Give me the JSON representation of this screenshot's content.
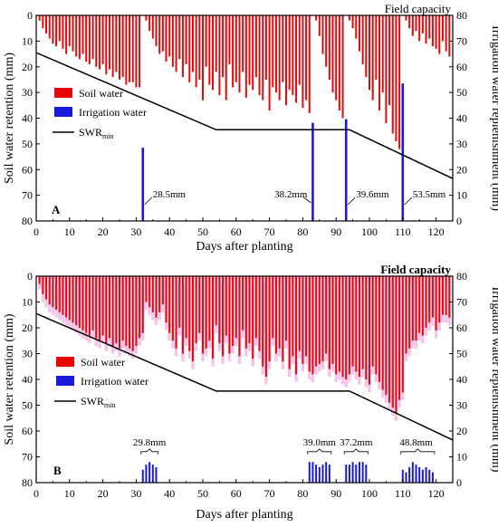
{
  "chart_data": [
    {
      "type": "bar",
      "panel_label": "A",
      "title": "Field capacity",
      "xlabel": "Days after planting",
      "ylabel": "Soil water retention (mm)",
      "y2label": "Irrigation water replenishment (mm)",
      "xlim": [
        0,
        125
      ],
      "ylim": [
        80,
        0
      ],
      "y2lim": [
        0,
        80
      ],
      "xticks": [
        0,
        10,
        20,
        30,
        40,
        50,
        60,
        70,
        80,
        90,
        100,
        110,
        120
      ],
      "yticks": [
        0,
        10,
        20,
        30,
        40,
        50,
        60,
        70,
        80
      ],
      "y2ticks": [
        0,
        10,
        20,
        30,
        40,
        50,
        60,
        70,
        80
      ],
      "legend": {
        "placement": "left",
        "entries": [
          "Soil water",
          "Irrigation water",
          "SWR_min"
        ]
      },
      "legend_labels": {
        "soil": "Soil water",
        "irr": "Irrigation water",
        "swr_main": "SWR",
        "swr_sub": "min"
      },
      "colors": {
        "soil": "#e8080a",
        "irrigation": "#1a1adb",
        "swr": "#000000"
      },
      "series": [
        {
          "name": "Soil water",
          "x": [
            1,
            2,
            3,
            4,
            5,
            6,
            7,
            8,
            9,
            10,
            11,
            12,
            13,
            14,
            15,
            16,
            17,
            18,
            19,
            20,
            21,
            22,
            23,
            24,
            25,
            26,
            27,
            28,
            29,
            30,
            31,
            33,
            34,
            35,
            36,
            37,
            38,
            39,
            40,
            41,
            42,
            43,
            44,
            45,
            46,
            47,
            48,
            49,
            50,
            51,
            52,
            53,
            54,
            55,
            56,
            57,
            58,
            59,
            60,
            61,
            62,
            63,
            64,
            65,
            66,
            67,
            68,
            69,
            70,
            71,
            72,
            73,
            74,
            75,
            76,
            77,
            78,
            79,
            80,
            81,
            82,
            84,
            85,
            86,
            87,
            88,
            89,
            90,
            91,
            92,
            94,
            95,
            96,
            97,
            98,
            99,
            100,
            101,
            102,
            103,
            104,
            105,
            106,
            107,
            108,
            109,
            111,
            112,
            113,
            114,
            115,
            116,
            117,
            118,
            119,
            120,
            121,
            122,
            123,
            124
          ],
          "values": [
            2,
            5,
            7,
            9,
            11,
            12,
            10,
            13,
            15,
            12,
            14,
            16,
            17,
            15,
            18,
            19,
            17,
            20,
            21,
            19,
            23,
            21,
            24,
            22,
            25,
            24,
            27,
            26,
            26,
            28,
            28,
            2,
            6,
            9,
            12,
            15,
            14,
            18,
            16,
            20,
            22,
            17,
            24,
            19,
            26,
            22,
            28,
            25,
            33,
            20,
            27,
            29,
            22,
            31,
            24,
            33,
            19,
            28,
            26,
            30,
            22,
            32,
            27,
            29,
            24,
            31,
            33,
            25,
            37,
            28,
            30,
            33,
            26,
            35,
            29,
            31,
            34,
            27,
            36,
            33,
            38,
            2,
            8,
            15,
            20,
            25,
            30,
            33,
            37,
            40,
            2,
            5,
            9,
            14,
            19,
            24,
            29,
            33,
            25,
            37,
            30,
            42,
            35,
            46,
            49,
            52,
            2,
            5,
            8,
            6,
            10,
            7,
            11,
            9,
            12,
            13,
            15,
            10,
            14,
            16
          ]
        },
        {
          "name": "Irrigation water",
          "x": [
            32,
            83,
            93,
            110
          ],
          "values": [
            28.5,
            38.2,
            39.6,
            53.5
          ],
          "labels": [
            "28.5mm",
            "38.2mm",
            "39.6mm",
            "53.5mm"
          ]
        },
        {
          "name": "SWR_min",
          "type": "line",
          "x": [
            0,
            54,
            94,
            125
          ],
          "values": [
            14.5,
            44.5,
            44.5,
            63.5
          ]
        }
      ]
    },
    {
      "type": "bar",
      "panel_label": "B",
      "title": "Field capacity",
      "xlabel": "Days after planting",
      "ylabel": "Soil water retention (mm)",
      "y2label": "Irrigation water replenishment (mm)",
      "xlim": [
        0,
        125
      ],
      "ylim": [
        80,
        0
      ],
      "y2lim": [
        0,
        80
      ],
      "xticks": [
        0,
        10,
        20,
        30,
        40,
        50,
        60,
        70,
        80,
        90,
        100,
        110,
        120
      ],
      "yticks": [
        0,
        10,
        20,
        30,
        40,
        50,
        60,
        70,
        80
      ],
      "y2ticks": [
        0,
        10,
        20,
        30,
        40,
        50,
        60,
        70,
        80
      ],
      "legend": {
        "placement": "lower-left",
        "entries": [
          "Soil water",
          "Irrigation water",
          "SWR_min"
        ]
      },
      "legend_labels": {
        "soil": "Soil water",
        "irr": "Irrigation water",
        "swr_main": "SWR",
        "swr_sub": "min"
      },
      "colors": {
        "soil": "#e8080a",
        "soil_shade": "#f6c3ea",
        "irrigation": "#1a1adb",
        "swr": "#000000"
      },
      "series": [
        {
          "name": "Soil water",
          "x": [
            1,
            2,
            3,
            4,
            5,
            6,
            7,
            8,
            9,
            10,
            11,
            12,
            13,
            14,
            15,
            16,
            17,
            18,
            19,
            20,
            21,
            22,
            23,
            24,
            25,
            26,
            27,
            28,
            29,
            30,
            31,
            32,
            33,
            34,
            35,
            36,
            37,
            38,
            39,
            40,
            41,
            42,
            43,
            44,
            45,
            46,
            47,
            48,
            49,
            50,
            51,
            52,
            53,
            54,
            55,
            56,
            57,
            58,
            59,
            60,
            61,
            62,
            63,
            64,
            65,
            66,
            67,
            68,
            69,
            70,
            71,
            72,
            73,
            74,
            75,
            76,
            77,
            78,
            79,
            80,
            81,
            82,
            83,
            84,
            85,
            86,
            87,
            88,
            89,
            90,
            91,
            92,
            93,
            94,
            95,
            96,
            97,
            98,
            99,
            100,
            101,
            102,
            103,
            104,
            105,
            106,
            107,
            108,
            109,
            110,
            111,
            112,
            113,
            114,
            115,
            116,
            117,
            118,
            119,
            120,
            121,
            122,
            123,
            124
          ],
          "values": [
            3,
            7,
            9,
            11,
            12,
            13,
            14,
            15,
            16,
            17,
            18,
            19,
            20,
            21,
            22,
            23,
            21,
            24,
            25,
            23,
            26,
            24,
            27,
            26,
            28,
            25,
            27,
            28,
            29,
            27,
            24,
            22,
            10,
            12,
            14,
            16,
            14,
            11,
            18,
            22,
            25,
            28,
            20,
            30,
            24,
            29,
            33,
            26,
            22,
            30,
            28,
            25,
            32,
            19,
            26,
            31,
            23,
            30,
            27,
            24,
            31,
            21,
            28,
            26,
            32,
            24,
            29,
            35,
            39,
            33,
            24,
            30,
            28,
            33,
            25,
            36,
            31,
            38,
            29,
            34,
            31,
            37,
            38,
            35,
            34,
            33,
            30,
            36,
            34,
            38,
            37,
            39,
            40,
            38,
            35,
            37,
            39,
            36,
            40,
            42,
            35,
            38,
            41,
            44,
            46,
            49,
            51,
            53,
            48,
            45,
            30,
            28,
            25,
            25,
            22,
            23,
            20,
            18,
            16,
            21,
            18,
            15,
            15,
            16
          ],
          "band_extra": [
            2,
            3,
            3,
            3,
            3,
            3,
            3,
            3,
            3,
            3,
            3,
            3,
            3,
            3,
            3,
            3,
            3,
            3,
            3,
            3,
            3,
            3,
            3,
            3,
            3,
            3,
            3,
            3,
            3,
            3,
            3,
            3,
            3,
            3,
            3,
            3,
            3,
            3,
            3,
            3,
            3,
            3,
            3,
            3,
            3,
            3,
            3,
            3,
            3,
            3,
            3,
            3,
            3,
            3,
            3,
            3,
            3,
            3,
            3,
            3,
            3,
            3,
            3,
            3,
            3,
            3,
            3,
            3,
            3,
            3,
            3,
            3,
            3,
            3,
            3,
            3,
            3,
            3,
            3,
            3,
            3,
            3,
            3,
            3,
            3,
            3,
            3,
            3,
            3,
            3,
            3,
            3,
            3,
            3,
            3,
            3,
            3,
            3,
            3,
            3,
            3,
            3,
            3,
            3,
            3,
            3,
            3,
            3,
            3,
            3,
            3,
            3,
            3,
            3,
            3,
            3,
            3,
            3,
            3,
            3,
            3,
            3,
            3,
            3
          ]
        },
        {
          "name": "Irrigation water",
          "x": [
            32,
            33,
            34,
            35,
            36,
            82,
            83,
            84,
            85,
            86,
            87,
            88,
            93,
            94,
            95,
            96,
            97,
            98,
            99,
            110,
            111,
            112,
            113,
            114,
            115,
            116,
            117,
            118,
            119
          ],
          "values": [
            5,
            7,
            8,
            7,
            6,
            8,
            8,
            7,
            6,
            7,
            8,
            7,
            7,
            7,
            8,
            7,
            8,
            8,
            7,
            5,
            4,
            6,
            8,
            7,
            6,
            5,
            6,
            5,
            4
          ],
          "labels": [
            "29.8mm",
            "39.0mm",
            "37.2mm",
            "48.8mm"
          ],
          "groups": [
            [
              32,
              36
            ],
            [
              82,
              88
            ],
            [
              93,
              99
            ],
            [
              110,
              119
            ]
          ],
          "label_x": [
            34,
            85,
            96,
            114
          ]
        },
        {
          "name": "SWR_min",
          "type": "line",
          "x": [
            0,
            54,
            94,
            125
          ],
          "values": [
            14.5,
            44.5,
            44.5,
            63.5
          ]
        }
      ]
    }
  ]
}
